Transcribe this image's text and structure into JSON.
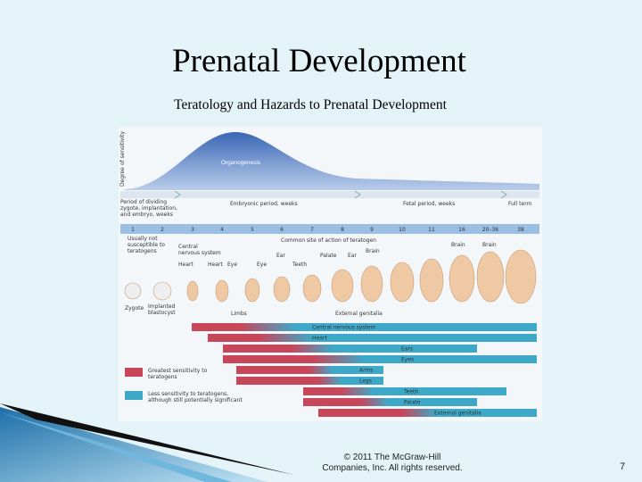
{
  "header": {
    "title": "Prenatal Development",
    "subtitle": "Teratology and Hazards to Prenatal Development"
  },
  "figure": {
    "y_axis_label": "Degree of sensitivity",
    "curve_label": "Organogenesis",
    "periods": [
      [
        "Period of dividing",
        "zygote, implantation,",
        "and embryo, weeks"
      ],
      "Embryonic period, weeks",
      "Fetal period, weeks",
      "Full term"
    ],
    "weeks": [
      1,
      2,
      3,
      4,
      5,
      6,
      7,
      8,
      9,
      10,
      11,
      16,
      "20–36",
      38
    ],
    "note": [
      "Usually not",
      "susceptible to",
      "teratogens"
    ],
    "common_site": "Common site of action of teratogen",
    "structure_labels": [
      [
        "Central",
        "nervous system"
      ],
      "Brain",
      "Brain",
      "Brain",
      "Heart",
      "Heart",
      "Eye",
      "Eye",
      "Ear",
      "Teeth",
      "Palate",
      "Ear",
      "Limbs",
      "External genitalia"
    ],
    "stage_labels": [
      "Zygote",
      [
        "Implanted",
        "blastocyst"
      ]
    ],
    "bars": [
      "Central nervous system",
      "Heart",
      "Ears",
      "Eyes",
      "Arms",
      "Legs",
      "Teeth",
      "Palate",
      "External genitalia"
    ],
    "legend": [
      [
        "Greatest sensitivity to",
        "teratogens"
      ],
      [
        "Less sensitivity to teratogens,",
        "although still potentially significant"
      ]
    ]
  },
  "footer": {
    "copyright": [
      "© 2011 The McGraw-Hill",
      "Companies, Inc. All rights reserved."
    ],
    "page": 7
  }
}
